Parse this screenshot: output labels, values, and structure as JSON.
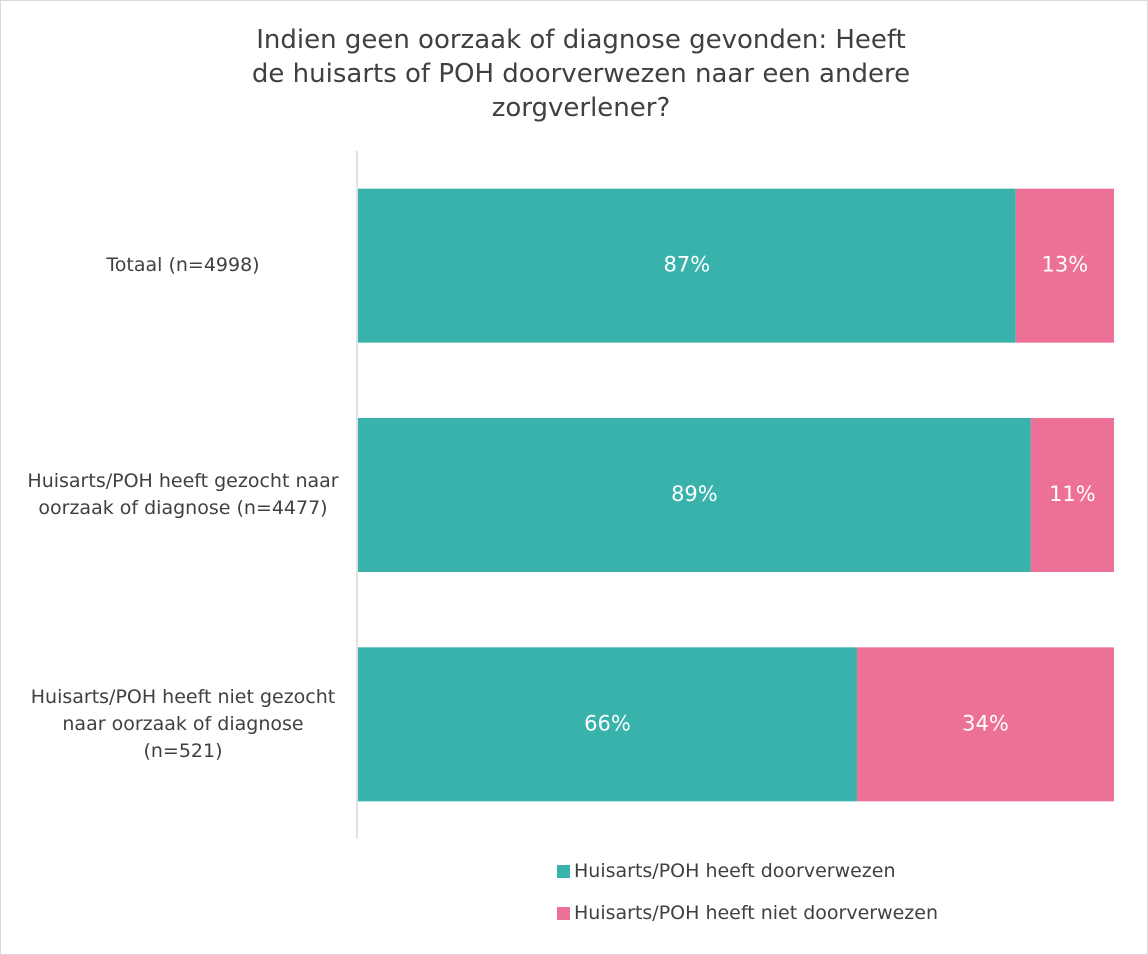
{
  "chart_data": {
    "type": "stacked_bar_horizontal",
    "title": "Indien geen oorzaak of diagnose gevonden: Heeft de huisarts of POH doorverwezen naar een andere zorgverlener?",
    "categories": [
      "Totaal (n=4998)",
      "Huisarts/POH heeft gezocht naar oorzaak of diagnose (n=4477)",
      "Huisarts/POH heeft niet gezocht naar oorzaak of diagnose (n=521)"
    ],
    "series": [
      {
        "name": "Huisarts/POH heeft doorverwezen",
        "color": "#38b2ab",
        "values": [
          87,
          89,
          66
        ],
        "value_labels": [
          "87%",
          "89%",
          "66%"
        ]
      },
      {
        "name": "Huisarts/POH heeft niet doorverwezen",
        "color": "#ed7096",
        "values": [
          13,
          11,
          34
        ],
        "value_labels": [
          "13%",
          "11%",
          "34%"
        ]
      }
    ],
    "xlim": [
      0,
      100
    ]
  }
}
